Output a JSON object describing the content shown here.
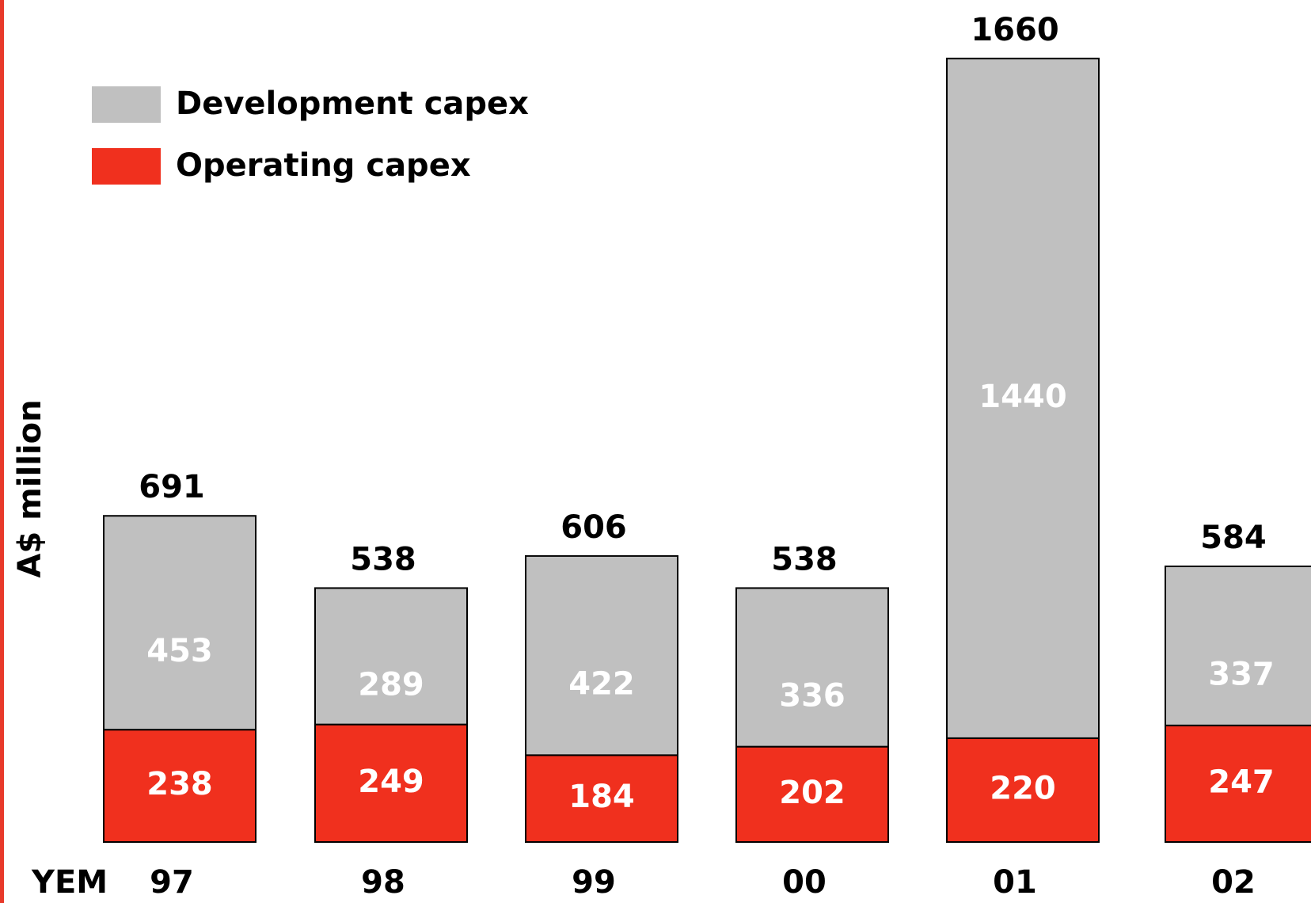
{
  "chart_data": {
    "type": "stacked_bar",
    "y_label": "A$ million",
    "x_label": "YEM",
    "categories": [
      "97",
      "98",
      "99",
      "00",
      "01",
      "02"
    ],
    "series": [
      {
        "name": "Operating capex",
        "color": "#f0301e",
        "values": [
          238,
          249,
          184,
          202,
          220,
          247
        ]
      },
      {
        "name": "Development capex",
        "color": "#c0c0c0",
        "values": [
          453,
          289,
          422,
          336,
          1440,
          337
        ]
      }
    ],
    "totals": [
      691,
      538,
      606,
      538,
      1660,
      584
    ],
    "ylim": [
      0,
      1700
    ]
  }
}
